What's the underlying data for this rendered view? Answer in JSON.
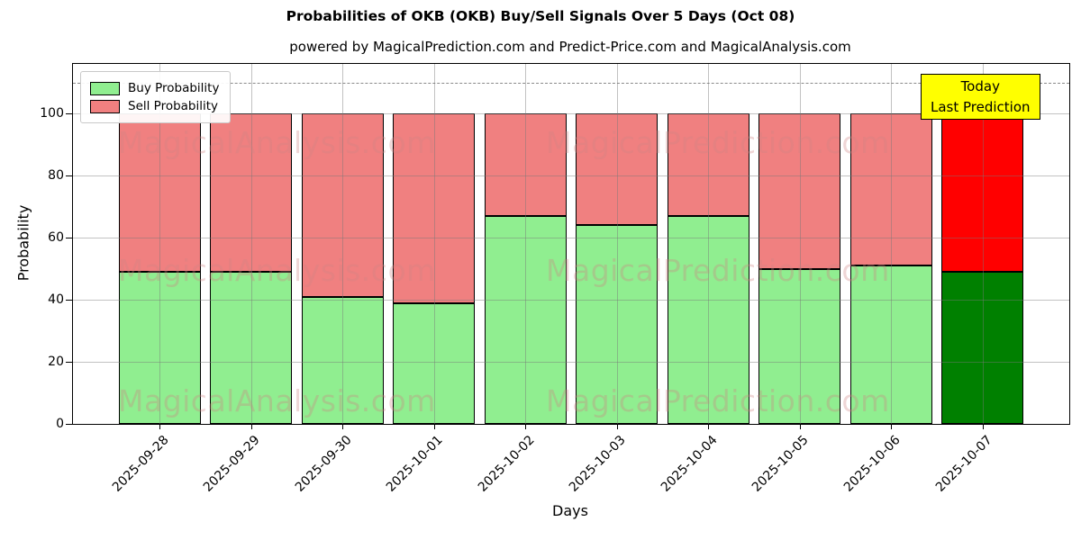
{
  "title": "Probabilities of OKB (OKB) Buy/Sell Signals Over 5 Days (Oct 08)",
  "subtitle": "powered by MagicalPrediction.com and Predict-Price.com and MagicalAnalysis.com",
  "annotation": {
    "line1": "Today",
    "line2": "Last Prediction",
    "bg_color": "#ffff00"
  },
  "legend": [
    {
      "label": "Buy Probability",
      "color": "#90ee90"
    },
    {
      "label": "Sell Probability",
      "color": "#f08080"
    }
  ],
  "watermarks": {
    "left_text": "MagicalAnalysis.com",
    "right_text": "MagicalPrediction.com"
  },
  "chart_data": {
    "type": "bar",
    "stacked": true,
    "title": "Probabilities of OKB (OKB) Buy/Sell Signals Over 5 Days (Oct 08)",
    "xlabel": "Days",
    "ylabel": "Probability",
    "categories": [
      "2025-09-28",
      "2025-09-29",
      "2025-09-30",
      "2025-10-01",
      "2025-10-02",
      "2025-10-03",
      "2025-10-04",
      "2025-10-05",
      "2025-10-06",
      "2025-10-07"
    ],
    "series": [
      {
        "name": "Buy Probability",
        "values": [
          49,
          49,
          41,
          39,
          67,
          64,
          67,
          50,
          51,
          49
        ],
        "color": "#90ee90",
        "last_bar_color": "#008000"
      },
      {
        "name": "Sell Probability",
        "values": [
          51,
          51,
          59,
          61,
          33,
          36,
          33,
          50,
          49,
          51
        ],
        "color": "#f08080",
        "last_bar_color": "#ff0000"
      }
    ],
    "yticks": [
      0,
      20,
      40,
      60,
      80,
      100
    ],
    "ylim": [
      0,
      116
    ],
    "dashed_line_y": 110,
    "grid": true,
    "legend_position": "upper left",
    "bar_edge_color": "#000000"
  }
}
